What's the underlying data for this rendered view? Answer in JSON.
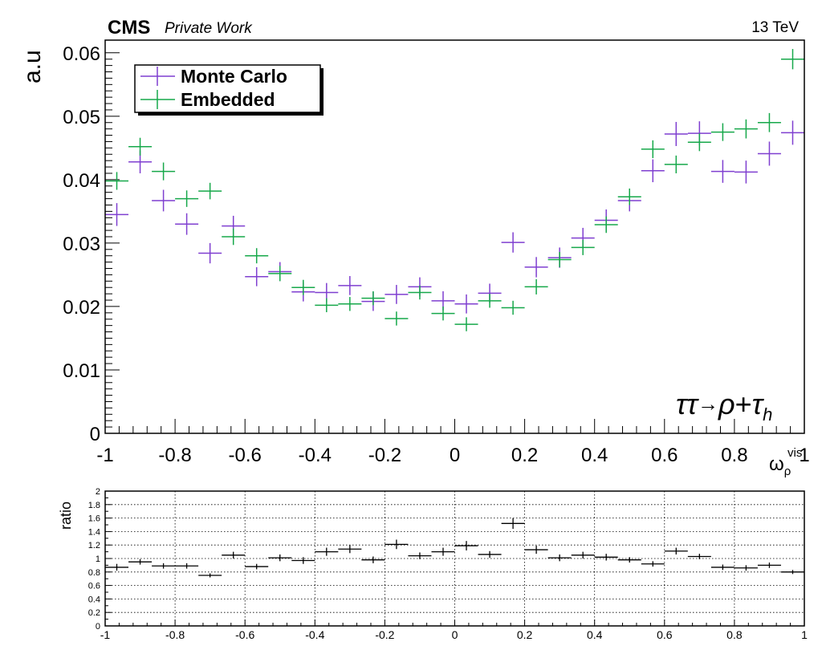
{
  "header": {
    "experiment": "CMS",
    "status": "Private Work",
    "energy": "13 TeV"
  },
  "channel_label": {
    "tau_pair": "ττ",
    "arrow": "→",
    "rho": "ρ",
    "plus": "+",
    "tau": "τ",
    "sub": "h"
  },
  "colors": {
    "monte_carlo": "#7f3fd0",
    "embedded": "#16a84a",
    "ratio": "#000000",
    "frame": "#000000",
    "grid": "#000000"
  },
  "chart_data": [
    {
      "type": "scatter",
      "ylabel": "a.u",
      "xlabel": {
        "base": "ω",
        "sub": "ρ",
        "sup": "vis"
      },
      "xlim": [
        -1,
        1
      ],
      "ylim": [
        0,
        0.062
      ],
      "xticks": [
        -1,
        -0.8,
        -0.6,
        -0.4,
        -0.2,
        0,
        0.2,
        0.4,
        0.6,
        0.8,
        1
      ],
      "xtick_labels": [
        "-1",
        "-0.8",
        "-0.6",
        "-0.4",
        "-0.2",
        "0",
        "0.2",
        "0.4",
        "0.6",
        "0.8",
        "1"
      ],
      "yticks": [
        0,
        0.01,
        0.02,
        0.03,
        0.04,
        0.05,
        0.06
      ],
      "ytick_labels": [
        "0",
        "0.01",
        "0.02",
        "0.03",
        "0.04",
        "0.05",
        "0.06"
      ],
      "grid": false,
      "legend": {
        "position": "top-left",
        "entries": [
          "Monte Carlo",
          "Embedded"
        ]
      },
      "bin_half_width": 0.0333,
      "x": [
        -0.9667,
        -0.9,
        -0.8333,
        -0.7667,
        -0.7,
        -0.6333,
        -0.5667,
        -0.5,
        -0.4333,
        -0.3667,
        -0.3,
        -0.2333,
        -0.1667,
        -0.1,
        -0.0333,
        0.0333,
        0.1,
        0.1667,
        0.2333,
        0.3,
        0.3667,
        0.4333,
        0.5,
        0.5667,
        0.6333,
        0.7,
        0.7667,
        0.8333,
        0.9,
        0.9667
      ],
      "series": [
        {
          "name": "Monte Carlo",
          "values": [
            0.0345,
            0.0428,
            0.0367,
            0.033,
            0.0284,
            0.0327,
            0.0247,
            0.0255,
            0.0223,
            0.0222,
            0.0233,
            0.0208,
            0.0219,
            0.0231,
            0.0209,
            0.0204,
            0.0221,
            0.0301,
            0.0262,
            0.0277,
            0.0308,
            0.0336,
            0.0367,
            0.0414,
            0.0472,
            0.0473,
            0.0413,
            0.0412,
            0.0441,
            0.0474
          ],
          "errors": [
            0.0018,
            0.0018,
            0.0017,
            0.0017,
            0.0016,
            0.0016,
            0.0015,
            0.0015,
            0.0015,
            0.0015,
            0.0015,
            0.0015,
            0.0015,
            0.0015,
            0.0015,
            0.0015,
            0.0015,
            0.0016,
            0.0016,
            0.0016,
            0.0016,
            0.0017,
            0.0017,
            0.0018,
            0.0019,
            0.0019,
            0.0018,
            0.0018,
            0.0019,
            0.0019
          ]
        },
        {
          "name": "Embedded",
          "values": [
            0.0398,
            0.0452,
            0.0413,
            0.037,
            0.0382,
            0.031,
            0.028,
            0.0252,
            0.023,
            0.0202,
            0.0204,
            0.0213,
            0.0181,
            0.0222,
            0.0189,
            0.0172,
            0.0209,
            0.0198,
            0.0231,
            0.0274,
            0.0293,
            0.0329,
            0.0373,
            0.0448,
            0.0424,
            0.0459,
            0.0475,
            0.048,
            0.049,
            0.059
          ],
          "errors": [
            0.0014,
            0.0014,
            0.0014,
            0.0013,
            0.0013,
            0.0013,
            0.0012,
            0.0012,
            0.0012,
            0.0011,
            0.0011,
            0.0011,
            0.0011,
            0.0011,
            0.0011,
            0.0011,
            0.0011,
            0.0011,
            0.0012,
            0.0012,
            0.0012,
            0.0013,
            0.0013,
            0.0014,
            0.0014,
            0.0014,
            0.0014,
            0.0015,
            0.0015,
            0.0016
          ]
        }
      ]
    },
    {
      "type": "scatter",
      "ylabel": "ratio",
      "xlabel": "",
      "xlim": [
        -1,
        1
      ],
      "ylim": [
        0,
        2
      ],
      "xticks": [
        -1,
        -0.8,
        -0.6,
        -0.4,
        -0.2,
        0,
        0.2,
        0.4,
        0.6,
        0.8,
        1
      ],
      "xtick_labels": [
        "-1",
        "-0.8",
        "-0.6",
        "-0.4",
        "-0.2",
        "0",
        "0.2",
        "0.4",
        "0.6",
        "0.8",
        "1"
      ],
      "yticks": [
        0,
        0.2,
        0.4,
        0.6,
        0.8,
        1,
        1.2,
        1.4,
        1.6,
        1.8,
        2
      ],
      "ytick_labels": [
        "0",
        "0.2",
        "0.4",
        "0.6",
        "0.8",
        "1",
        "1.2",
        "1.4",
        "1.6",
        "1.8",
        "2"
      ],
      "grid": true,
      "bin_half_width": 0.0333,
      "x": [
        -0.9667,
        -0.9,
        -0.8333,
        -0.7667,
        -0.7,
        -0.6333,
        -0.5667,
        -0.5,
        -0.4333,
        -0.3667,
        -0.3,
        -0.2333,
        -0.1667,
        -0.1,
        -0.0333,
        0.0333,
        0.1,
        0.1667,
        0.2333,
        0.3,
        0.3667,
        0.4333,
        0.5,
        0.5667,
        0.6333,
        0.7,
        0.7667,
        0.8333,
        0.9,
        0.9667
      ],
      "series": [
        {
          "values": [
            0.87,
            0.95,
            0.89,
            0.89,
            0.75,
            1.05,
            0.88,
            1.01,
            0.97,
            1.1,
            1.14,
            0.98,
            1.21,
            1.04,
            1.1,
            1.19,
            1.06,
            1.52,
            1.13,
            1.01,
            1.05,
            1.02,
            0.98,
            0.92,
            1.11,
            1.03,
            0.87,
            0.86,
            0.9,
            0.8
          ],
          "errors": [
            0.05,
            0.04,
            0.04,
            0.04,
            0.03,
            0.05,
            0.04,
            0.05,
            0.05,
            0.06,
            0.06,
            0.05,
            0.07,
            0.05,
            0.06,
            0.07,
            0.05,
            0.08,
            0.06,
            0.05,
            0.05,
            0.05,
            0.04,
            0.04,
            0.05,
            0.04,
            0.04,
            0.04,
            0.04,
            0.03
          ]
        }
      ]
    }
  ]
}
